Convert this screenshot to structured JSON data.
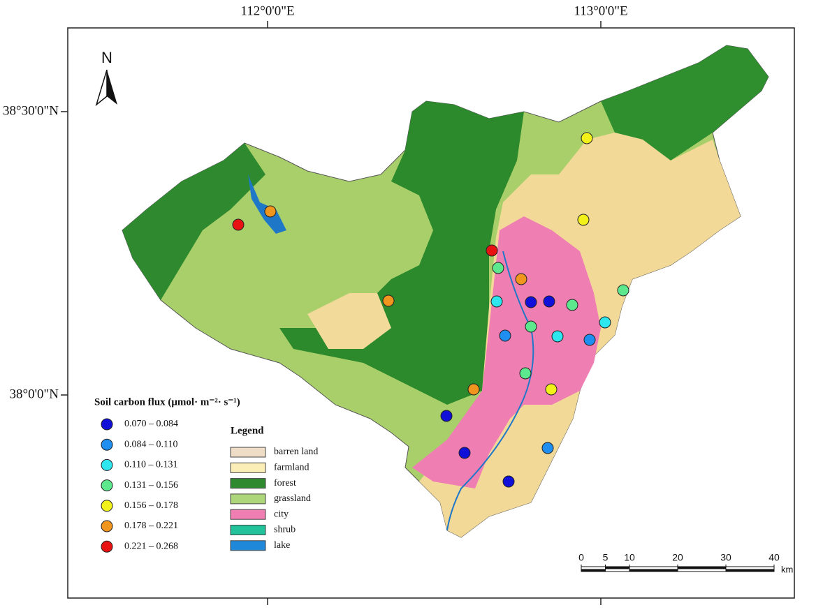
{
  "map": {
    "x_labels": [
      "112°0'0\"E",
      "113°0'0\"E"
    ],
    "y_labels": [
      "38°30'0\"N",
      "38°0'0\"N"
    ],
    "north": "N",
    "flux_legend": {
      "title": "Soil carbon flux (μmol· m⁻²· s⁻¹)",
      "classes": [
        {
          "label": "0.070 – 0.084",
          "color": "#1010d8"
        },
        {
          "label": "0.084 – 0.110",
          "color": "#1e8ff0"
        },
        {
          "label": "0.110 – 0.131",
          "color": "#2ee6ee"
        },
        {
          "label": "0.131 – 0.156",
          "color": "#5ee88e"
        },
        {
          "label": "0.156 – 0.178",
          "color": "#f2f21a"
        },
        {
          "label": "0.178 – 0.221",
          "color": "#f0961e"
        },
        {
          "label": "0.221 – 0.268",
          "color": "#e81212"
        }
      ]
    },
    "landcover_legend": {
      "title": "Legend",
      "classes": [
        {
          "label": "barren land",
          "color": "#efdcc6"
        },
        {
          "label": "farmland",
          "color": "#fbeeb7"
        },
        {
          "label": "forest",
          "color": "#2f8a2f"
        },
        {
          "label": "grassland",
          "color": "#add67a"
        },
        {
          "label": "city",
          "color": "#ef7fb2"
        },
        {
          "label": "shrub",
          "color": "#22c29a"
        },
        {
          "label": "lake",
          "color": "#1f88d8"
        }
      ]
    },
    "scale_bar": {
      "ticks": [
        0,
        5,
        10,
        20,
        30,
        40
      ],
      "unit": "km"
    }
  }
}
